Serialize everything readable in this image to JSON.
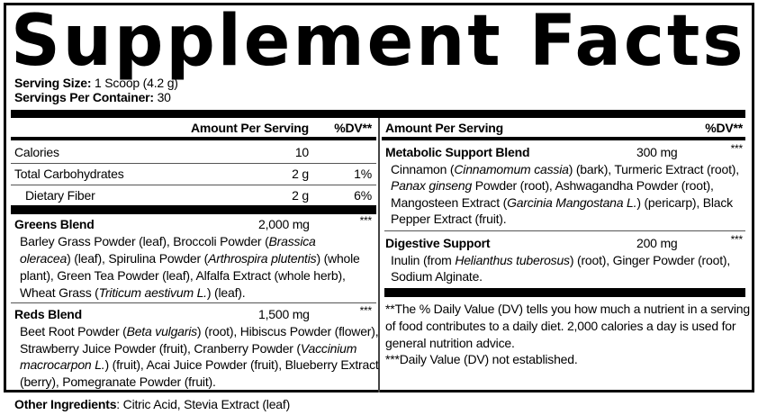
{
  "title": "Supplement Facts",
  "serving_size": {
    "label": "Serving Size:",
    "value": " 1 Scoop (4.2 g)"
  },
  "servings_per_container": {
    "label": "Servings Per Container:",
    "value": " 30"
  },
  "header": {
    "amount": "Amount Per Serving",
    "dv": "%DV**"
  },
  "nutrients": [
    {
      "name": "Calories",
      "amount": "10",
      "dv": ""
    },
    {
      "name": "Total Carbohydrates",
      "amount": "2 g",
      "dv": "1%"
    },
    {
      "name": "Dietary Fiber",
      "amount": "2 g",
      "dv": "6%"
    }
  ],
  "blends": [
    {
      "name": "Greens Blend",
      "amount": "2,000 mg",
      "dv": "***",
      "lines": [
        [
          {
            "t": "Barley Grass Powder (leaf), Broccoli Powder ("
          },
          {
            "t": "Brassica",
            "i": true
          }
        ],
        [
          {
            "t": "oleracea",
            "i": true
          },
          {
            "t": ") (leaf), Spirulina Powder ("
          },
          {
            "t": "Arthrospira plutentis",
            "i": true
          },
          {
            "t": ") (whole"
          }
        ],
        [
          {
            "t": "plant), Green Tea Powder (leaf), Alfalfa Extract (whole herb),"
          }
        ],
        [
          {
            "t": "Wheat Grass ("
          },
          {
            "t": "Triticum aestivum L.",
            "i": true
          },
          {
            "t": ") (leaf)."
          }
        ]
      ]
    },
    {
      "name": "Reds Blend",
      "amount": "1,500 mg",
      "dv": "***",
      "lines": [
        [
          {
            "t": "Beet Root Powder ("
          },
          {
            "t": "Beta vulgaris",
            "i": true
          },
          {
            "t": ") (root), Hibiscus Powder (flower),"
          }
        ],
        [
          {
            "t": "Strawberry Juice Powder (fruit), Cranberry Powder ("
          },
          {
            "t": "Vaccinium",
            "i": true
          }
        ],
        [
          {
            "t": "macrocarpon L.",
            "i": true
          },
          {
            "t": ") (fruit), Acai Juice Powder (fruit), Blueberry Extract"
          }
        ],
        [
          {
            "t": "(berry), Pomegranate Powder (fruit)."
          }
        ]
      ]
    },
    {
      "name": "Metabolic Support Blend",
      "amount": "300 mg",
      "dv": "***",
      "lines": [
        [
          {
            "t": "Cinnamon ("
          },
          {
            "t": "Cinnamomum cassia",
            "i": true
          },
          {
            "t": ") (bark), Turmeric Extract (root),"
          }
        ],
        [
          {
            "t": "Panax ginseng",
            "i": true
          },
          {
            "t": " Powder (root), Ashwagandha Powder (root),"
          }
        ],
        [
          {
            "t": "Mangosteen Extract ("
          },
          {
            "t": "Garcinia Mangostana L.",
            "i": true
          },
          {
            "t": ") (pericarp), Black"
          }
        ],
        [
          {
            "t": "Pepper Extract (fruit)."
          }
        ]
      ]
    },
    {
      "name": "Digestive Support",
      "amount": "200 mg",
      "dv": "***",
      "lines": [
        [
          {
            "t": "Inulin (from "
          },
          {
            "t": "Helianthus tuberosus",
            "i": true
          },
          {
            "t": ") (root), Ginger Powder (root),"
          }
        ],
        [
          {
            "t": "Sodium Alginate."
          }
        ]
      ]
    }
  ],
  "footnotes": [
    "**The % Daily Value (DV) tells you how much a nutrient in a serving",
    "of food contributes to a daily diet. 2,000 calories a day is used for",
    "general nutrition advice.",
    "***Daily Value (DV) not established."
  ],
  "other_ingredients": {
    "label": "Other Ingredients",
    "value": ": Citric Acid, Stevia Extract (leaf)"
  }
}
